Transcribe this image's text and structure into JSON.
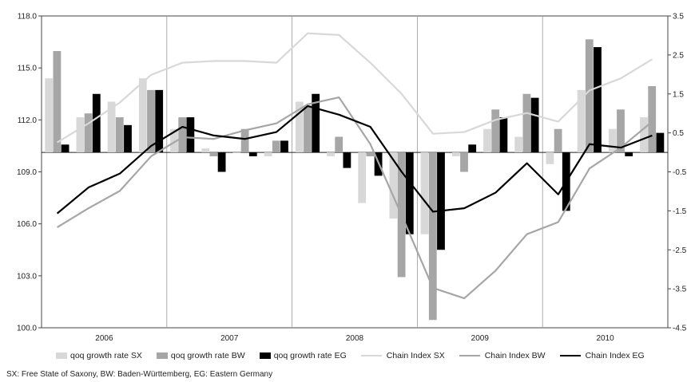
{
  "chart_data": {
    "type": "bar",
    "categories": [
      "2006",
      "2007",
      "2008",
      "2009",
      "2010"
    ],
    "quarters_per_year": 4,
    "left_axis": {
      "ylim": [
        100.0,
        118.0
      ],
      "ticks": [
        "100.0",
        "103.0",
        "106.0",
        "109.0",
        "112.0",
        "115.0",
        "118.0"
      ]
    },
    "right_axis": {
      "ylim": [
        -4.5,
        3.5
      ],
      "ticks": [
        "-4.5",
        "-3.5",
        "-2.5",
        "-1.5",
        "-0.5",
        "0.5",
        "1.5",
        "2.5",
        "3.5"
      ]
    },
    "bar_series": [
      {
        "name": "qoq growth rate SX",
        "color": "#d8d8d8",
        "axis": "right",
        "values": [
          1.9,
          0.9,
          1.3,
          1.9,
          0.6,
          0.1,
          0.0,
          -0.1,
          1.3,
          -0.1,
          -1.3,
          -1.7,
          -2.1,
          -0.1,
          0.6,
          0.4,
          -0.3,
          1.6,
          0.6,
          0.9
        ]
      },
      {
        "name": "qoq growth rate BW",
        "color": "#a6a6a6",
        "axis": "right",
        "values": [
          2.6,
          1.0,
          0.9,
          1.6,
          0.9,
          -0.1,
          0.6,
          0.3,
          1.2,
          0.4,
          -0.1,
          -3.2,
          -4.3,
          -0.5,
          1.1,
          1.5,
          0.6,
          2.9,
          1.1,
          1.7
        ]
      },
      {
        "name": "qoq growth rate EG",
        "color": "#000000",
        "axis": "right",
        "values": [
          0.2,
          1.5,
          0.7,
          1.6,
          0.9,
          -0.5,
          -0.1,
          0.3,
          1.5,
          -0.4,
          -0.6,
          -2.1,
          -2.5,
          0.2,
          0.9,
          1.4,
          -1.5,
          2.7,
          -0.1,
          0.5
        ]
      }
    ],
    "line_series": [
      {
        "name": "Chain Index SX",
        "color": "#d8d8d8",
        "axis": "left",
        "values": [
          110.7,
          111.8,
          113.0,
          114.6,
          115.3,
          115.4,
          115.4,
          115.3,
          117.0,
          116.9,
          115.3,
          113.5,
          111.2,
          111.3,
          112.0,
          112.4,
          111.9,
          113.7,
          114.4,
          115.5
        ]
      },
      {
        "name": "Chain Index BW",
        "color": "#a6a6a6",
        "axis": "left",
        "values": [
          105.8,
          106.9,
          107.9,
          109.9,
          111.0,
          110.9,
          111.4,
          111.8,
          112.9,
          113.3,
          110.6,
          106.5,
          102.3,
          101.7,
          103.3,
          105.4,
          106.1,
          109.2,
          110.4,
          111.9
        ]
      },
      {
        "name": "Chain Index EG",
        "color": "#000000",
        "axis": "left",
        "values": [
          106.6,
          108.1,
          108.9,
          110.5,
          111.6,
          111.1,
          110.9,
          111.3,
          112.8,
          112.3,
          111.6,
          109.0,
          106.7,
          106.9,
          107.8,
          109.5,
          107.7,
          110.6,
          110.4,
          111.1
        ]
      }
    ],
    "grid": false
  },
  "legend": {
    "items": [
      {
        "label": "qoq growth rate SX",
        "kind": "bar",
        "color": "#d8d8d8"
      },
      {
        "label": "qoq growth rate BW",
        "kind": "bar",
        "color": "#a6a6a6"
      },
      {
        "label": "qoq growth rate EG",
        "kind": "bar",
        "color": "#000000"
      },
      {
        "label": "Chain Index SX",
        "kind": "line",
        "color": "#d8d8d8"
      },
      {
        "label": "Chain Index BW",
        "kind": "line",
        "color": "#a6a6a6"
      },
      {
        "label": "Chain Index EG",
        "kind": "line",
        "color": "#000000"
      }
    ]
  },
  "footnote": "SX: Free State of Saxony, BW: Baden-Württemberg, EG: Eastern Germany"
}
